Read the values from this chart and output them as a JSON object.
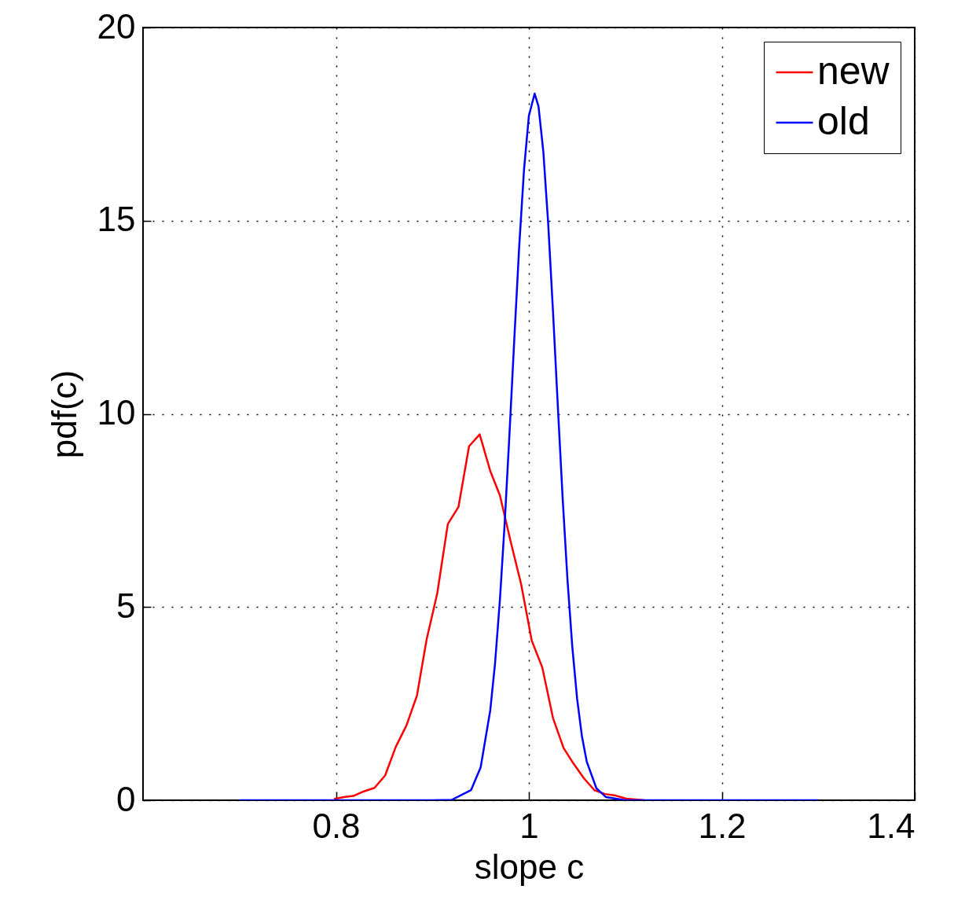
{
  "chart_data": {
    "type": "line",
    "xlabel": "slope c",
    "ylabel": "pdf(c)",
    "xlim": [
      0.6,
      1.4
    ],
    "xticks": [
      0.8,
      1,
      1.2,
      1.4
    ],
    "ylim": [
      0,
      20
    ],
    "yticks": [
      0,
      5,
      10,
      15,
      20
    ],
    "grid": true,
    "legend": "top right",
    "series": [
      {
        "name": "new",
        "color": "#ff0000",
        "x": [
          0.798,
          0.808,
          0.818,
          0.829,
          0.84,
          0.851,
          0.862,
          0.873,
          0.884,
          0.894,
          0.905,
          0.916,
          0.927,
          0.938,
          0.949,
          0.96,
          0.97,
          0.981,
          0.992,
          1.003,
          1.014,
          1.025,
          1.036,
          1.046,
          1.057,
          1.068,
          1.079,
          1.09,
          1.101,
          1.12
        ],
        "values": [
          0.03,
          0.08,
          0.11,
          0.23,
          0.32,
          0.64,
          1.38,
          1.93,
          2.71,
          4.16,
          5.35,
          7.15,
          7.59,
          9.16,
          9.47,
          8.52,
          7.89,
          6.71,
          5.59,
          4.13,
          3.43,
          2.13,
          1.35,
          0.96,
          0.57,
          0.26,
          0.16,
          0.12,
          0.04,
          0
        ]
      },
      {
        "name": "old",
        "color": "#0000ff",
        "x": [
          0.7,
          0.9,
          0.92,
          0.94,
          0.95,
          0.96,
          0.965,
          0.97,
          0.975,
          0.98,
          0.985,
          0.99,
          0.995,
          1,
          1.006,
          1.01,
          1.015,
          1.02,
          1.025,
          1.03,
          1.035,
          1.04,
          1.045,
          1.05,
          1.055,
          1.06,
          1.07,
          1.08,
          1.1,
          1.3
        ],
        "values": [
          0,
          0,
          0.01,
          0.26,
          0.85,
          2.33,
          3.56,
          5.19,
          7.2,
          9.53,
          11.98,
          14.34,
          16.33,
          17.71,
          18.29,
          17.96,
          16.79,
          14.94,
          12.66,
          10.21,
          7.83,
          5.72,
          3.98,
          2.63,
          1.66,
          1,
          0.31,
          0.08,
          0,
          0
        ]
      }
    ]
  }
}
